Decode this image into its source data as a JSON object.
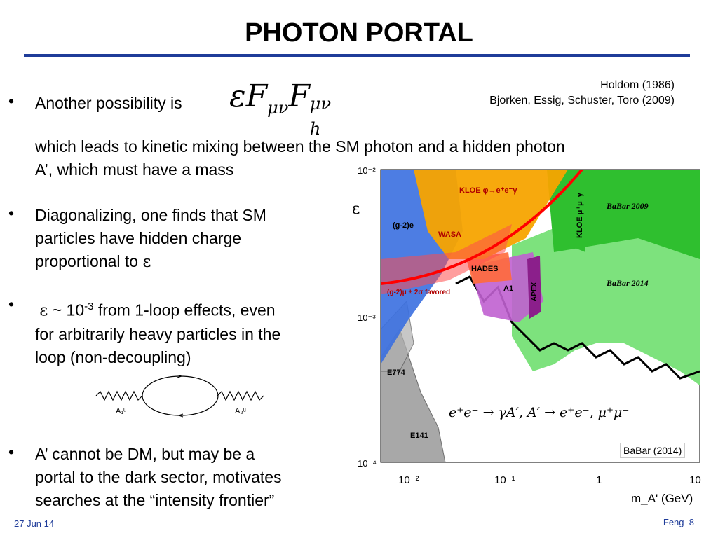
{
  "title": "PHOTON PORTAL",
  "refs": {
    "line1": "Holdom (1986)",
    "line2": "Bjorken, Essig, Schuster, Toro (2009)"
  },
  "bullets": {
    "b1": "Another possibility is",
    "b1_cont1": "which leads to kinetic mixing between the SM photon and a hidden photon",
    "b1_cont2": "A’, which must have a mass",
    "b2_l1": "Diagonalizing, one finds that SM",
    "b2_l2": "particles have hidden charge",
    "b2_l3": "proportional to ",
    "b3_pre": " ~ 10",
    "b3_exp": "-3",
    "b3_post": " from 1-loop effects, even",
    "b3_l2": "for arbitrarily heavy particles in the",
    "b3_l3": "loop (non-decoupling)",
    "b4_l1": "A’ cannot be DM, but may be a",
    "b4_l2": "portal to the dark sector, motivates",
    "b4_l3": "searches at the “intensity frontier”"
  },
  "symbols": {
    "epsilon": "ε",
    "bullet": "•"
  },
  "formula": {
    "eps": "ε",
    "F": "F",
    "sub1": "μν",
    "sup2": "μν",
    "sub2": "h"
  },
  "diagram": {
    "left_label": "A₁ᵘ",
    "right_label": "A₂ᵘ"
  },
  "chart_data": {
    "type": "area",
    "xlabel": "m_A' (GeV)",
    "ylabel": "ε",
    "xscale": "log",
    "yscale": "log",
    "xlim": [
      0.005,
      10
    ],
    "ylim": [
      0.0001,
      0.01
    ],
    "xticks": [
      "10⁻²",
      "10⁻¹",
      "1",
      "10"
    ],
    "yticks": [
      "10⁻²",
      "10⁻³",
      "10⁻⁴"
    ],
    "regions": [
      "(g-2)e",
      "WASA",
      "KLOE φ→e⁺e⁻γ",
      "KLOE μ⁺μ⁻γ",
      "BaBar 2009",
      "BaBar 2014",
      "HADES",
      "A1",
      "APEX",
      "(g-2)μ ± 2σ favored",
      "E774",
      "E141"
    ],
    "annotation": "e⁺e⁻ → γA′,   A′ → e⁺e⁻, μ⁺μ⁻",
    "caption": "BaBar (2014)",
    "colors": {
      "g2e": "#3a6fe0",
      "kloe": "#f7a400",
      "babar2009": "#2fbf2f",
      "babar2014": "#7de27d",
      "a1": "#c060d0",
      "apex": "#8b1f8b",
      "hades": "#ff6a3a",
      "e774": "#9a9a9a",
      "line": "#ff0000"
    }
  },
  "footer": {
    "date": "27 Jun 14",
    "author": "Feng",
    "page": "8"
  }
}
